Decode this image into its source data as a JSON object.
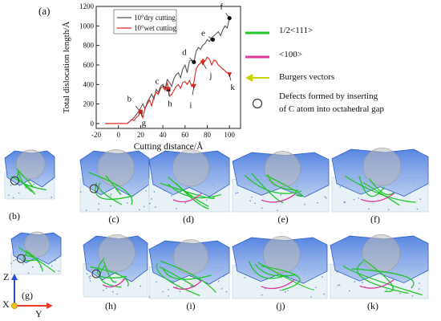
{
  "figure": {
    "panel_label_a": "(a)",
    "bottom_panels": [
      "(b)",
      "(c)",
      "(d)",
      "(e)",
      "(f)",
      "(g)",
      "(h)",
      "(i)",
      "(j)",
      "(k)"
    ],
    "axes_labels": {
      "z": "Z",
      "x": "X",
      "y": "Y"
    }
  },
  "legend": {
    "items": [
      {
        "label": "1/2<111>",
        "color": "#22c52b",
        "kind": "line"
      },
      {
        "label": "<100>",
        "color": "#e0379a",
        "kind": "line"
      },
      {
        "label": "Burgers vectors",
        "color": "#c8d400",
        "kind": "arrow"
      },
      {
        "label": "Defects formed by  inserting",
        "label2": "of C atom into octahedral gap",
        "color": "#333333",
        "kind": "circle"
      }
    ]
  },
  "chart_data": {
    "type": "line",
    "title": "",
    "xlabel": "Cutting distance/Å",
    "ylabel": "Total dislocation length/Å",
    "xlim": [
      -20,
      110
    ],
    "ylim": [
      -50,
      1200
    ],
    "xticks": [
      "-20",
      "0",
      "20",
      "40",
      "60",
      "80",
      "100"
    ],
    "yticks": [
      "0",
      "200",
      "400",
      "600",
      "800",
      "1000",
      "1200"
    ],
    "series": [
      {
        "name": "10°dry cutting",
        "color": "#555555",
        "x": [
          -12,
          0,
          8,
          10,
          12,
          14,
          16,
          18,
          20,
          22,
          24,
          26,
          28,
          30,
          32,
          34,
          36,
          38,
          40,
          42,
          44,
          46,
          48,
          50,
          52,
          54,
          56,
          58,
          60,
          62,
          64,
          66,
          68,
          70,
          72,
          74,
          76,
          78,
          80,
          82,
          84,
          86,
          88,
          90,
          92,
          94,
          96,
          98,
          100
        ],
        "y": [
          0,
          0,
          0,
          20,
          40,
          60,
          90,
          120,
          160,
          200,
          150,
          220,
          260,
          300,
          250,
          350,
          320,
          380,
          400,
          350,
          450,
          420,
          380,
          460,
          500,
          520,
          470,
          560,
          600,
          520,
          640,
          650,
          620,
          740,
          780,
          760,
          800,
          820,
          860,
          840,
          880,
          900,
          920,
          940,
          900,
          960,
          1000,
          980,
          1080
        ]
      },
      {
        "name": "10°wet cutting",
        "color": "#e0241a",
        "x": [
          -12,
          0,
          8,
          10,
          12,
          14,
          16,
          18,
          20,
          22,
          24,
          26,
          28,
          30,
          32,
          34,
          36,
          38,
          40,
          42,
          44,
          46,
          48,
          50,
          52,
          54,
          56,
          58,
          60,
          62,
          64,
          66,
          68,
          70,
          72,
          74,
          76,
          78,
          80,
          82,
          84,
          86,
          88,
          90,
          92,
          94,
          96,
          98,
          100
        ],
        "y": [
          0,
          0,
          0,
          20,
          40,
          30,
          60,
          80,
          120,
          60,
          160,
          200,
          240,
          180,
          280,
          320,
          300,
          360,
          380,
          340,
          420,
          280,
          300,
          340,
          380,
          400,
          360,
          420,
          430,
          400,
          440,
          380,
          420,
          560,
          600,
          620,
          660,
          640,
          680,
          660,
          600,
          650,
          640,
          600,
          580,
          560,
          540,
          520,
          510
        ]
      }
    ],
    "annotations": [
      {
        "text": "b",
        "x": 20,
        "y": 120,
        "marker": "square",
        "color": "#e0241a"
      },
      {
        "text": "g",
        "x": 20,
        "y": 120,
        "marker": "square",
        "color": "#e0241a"
      },
      {
        "text": "c",
        "x": 45,
        "y": 350,
        "marker": "square",
        "color": "#111111"
      },
      {
        "text": "h",
        "x": 45,
        "y": 350,
        "marker": "triangle",
        "color": "#e0241a"
      },
      {
        "text": "d",
        "x": 68,
        "y": 630,
        "marker": "circle",
        "color": "#111111"
      },
      {
        "text": "i",
        "x": 68,
        "y": 380,
        "marker": "triangle",
        "color": "#e0241a"
      },
      {
        "text": "e",
        "x": 85,
        "y": 860,
        "marker": "circle",
        "color": "#111111"
      },
      {
        "text": "j",
        "x": 76,
        "y": 620,
        "marker": "triangle",
        "color": "#e0241a"
      },
      {
        "text": "f",
        "x": 100,
        "y": 1080,
        "marker": "circle",
        "color": "#111111"
      },
      {
        "text": "k",
        "x": 100,
        "y": 500,
        "marker": "triangle",
        "color": "#e0241a"
      }
    ]
  }
}
